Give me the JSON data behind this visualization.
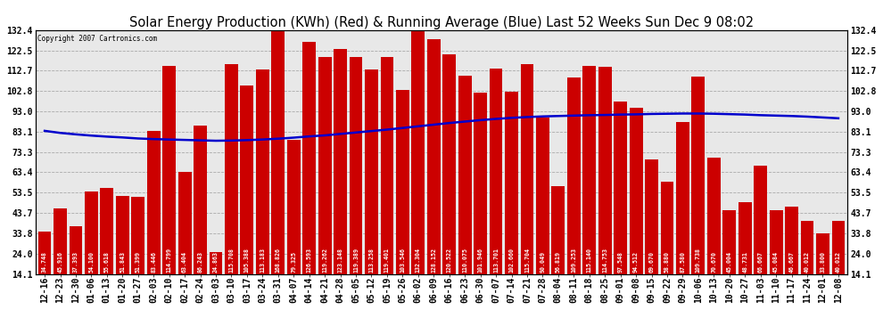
{
  "title": "Solar Energy Production (KWh) (Red) & Running Average (Blue) Last 52 Weeks Sun Dec 9 08:02",
  "copyright": "Copyright 2007 Cartronics.com",
  "bar_color": "#cc0000",
  "avg_line_color": "#0000cc",
  "background_color": "#ffffff",
  "plot_bg_color": "#e8e8e8",
  "grid_color": "#aaaaaa",
  "yticks": [
    14.1,
    24.0,
    33.8,
    43.7,
    53.5,
    63.4,
    73.3,
    83.1,
    93.0,
    102.8,
    112.7,
    122.5,
    132.4
  ],
  "ymin": 14.1,
  "ymax": 132.4,
  "dates": [
    "12-16",
    "12-23",
    "12-30",
    "01-06",
    "01-13",
    "01-20",
    "01-27",
    "02-03",
    "02-10",
    "02-17",
    "02-24",
    "03-03",
    "03-10",
    "03-17",
    "03-24",
    "03-31",
    "04-07",
    "04-14",
    "04-21",
    "04-28",
    "05-05",
    "05-12",
    "05-19",
    "05-26",
    "06-02",
    "06-09",
    "06-16",
    "06-23",
    "06-30",
    "07-07",
    "07-14",
    "07-21",
    "07-28",
    "08-04",
    "08-11",
    "08-18",
    "08-25",
    "09-01",
    "09-08",
    "09-15",
    "09-22",
    "09-29",
    "10-06",
    "10-13",
    "10-20",
    "10-27",
    "11-03",
    "11-10",
    "11-17",
    "11-24",
    "12-01",
    "12-08"
  ],
  "values": [
    34.748,
    45.916,
    37.393,
    54.1,
    55.618,
    51.843,
    51.399,
    83.446,
    114.799,
    63.404,
    86.243,
    24.863,
    115.708,
    105.388,
    113.183,
    168.826,
    79.325,
    126.593,
    119.262,
    123.148,
    119.389,
    113.258,
    119.401,
    103.546,
    132.304,
    128.152,
    120.522,
    110.075,
    101.946,
    113.701,
    102.66,
    115.704,
    90.049,
    56.819,
    109.253,
    115.14,
    114.753,
    97.548,
    94.512,
    69.67,
    58.88,
    87.58,
    109.738,
    70.67,
    45.004,
    48.731,
    66.667,
    45.084,
    46.667,
    40.012,
    33.8,
    40.012
  ],
  "running_avg": [
    83.5,
    82.5,
    81.8,
    81.2,
    80.7,
    80.3,
    79.8,
    79.5,
    79.3,
    79.1,
    78.9,
    78.7,
    78.8,
    79.0,
    79.3,
    79.7,
    80.2,
    80.8,
    81.3,
    82.0,
    82.7,
    83.4,
    84.1,
    84.9,
    85.7,
    86.5,
    87.3,
    88.0,
    88.7,
    89.3,
    89.8,
    90.2,
    90.5,
    90.7,
    90.9,
    91.1,
    91.2,
    91.4,
    91.5,
    91.7,
    91.8,
    91.9,
    91.9,
    91.8,
    91.6,
    91.4,
    91.1,
    90.9,
    90.7,
    90.4,
    90.0,
    89.6
  ],
  "title_fontsize": 10.5,
  "tick_fontsize": 7,
  "value_label_fontsize": 4.8
}
